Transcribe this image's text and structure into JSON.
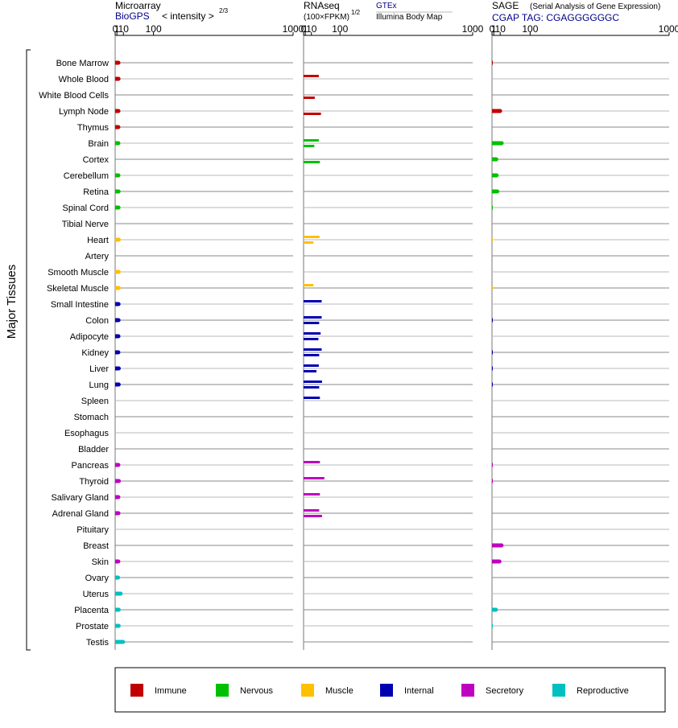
{
  "headers": {
    "microarray_title": "Microarray",
    "microarray_source": "BioGPS",
    "microarray_scale": "< intensity >",
    "microarray_scale_exp": "2/3",
    "rnaseq_title": "RNAseq",
    "rnaseq_scale": "(100×FPKM)",
    "rnaseq_scale_exp": "1/2",
    "rnaseq_source1": "GTEx",
    "rnaseq_source2": "Illumina Body Map",
    "sage_title": "SAGE",
    "sage_subtitle": "(Serial Analysis of Gene Expression)",
    "sage_tag": "CGAP TAG: CGAGGGGGGC"
  },
  "group_label": "Major Tissues",
  "legend": [
    {
      "label": "Immune",
      "color": "#c00000"
    },
    {
      "label": "Nervous",
      "color": "#00c000"
    },
    {
      "label": "Muscle",
      "color": "#ffc000"
    },
    {
      "label": "Internal",
      "color": "#0000b0"
    },
    {
      "label": "Secretory",
      "color": "#c000c0"
    },
    {
      "label": "Reproductive",
      "color": "#00c0c0"
    }
  ],
  "chart_data": {
    "type": "bar",
    "orientation": "horizontal",
    "scale": "power (intensity^(2/3))",
    "axis_ticks": [
      "0",
      "1",
      "10",
      "100",
      "1000"
    ],
    "panels": [
      "Microarray",
      "RNAseq (GTEx)",
      "RNAseq (Illumina Body Map)",
      "SAGE"
    ],
    "categories": [
      "Bone Marrow",
      "Whole Blood",
      "White Blood Cells",
      "Lymph Node",
      "Thymus",
      "Brain",
      "Cortex",
      "Cerebellum",
      "Retina",
      "Spinal Cord",
      "Tibial Nerve",
      "Heart",
      "Artery",
      "Smooth Muscle",
      "Skeletal Muscle",
      "Small Intestine",
      "Colon",
      "Adipocyte",
      "Kidney",
      "Liver",
      "Lung",
      "Spleen",
      "Stomach",
      "Esophagus",
      "Bladder",
      "Pancreas",
      "Thyroid",
      "Salivary Gland",
      "Adrenal Gland",
      "Pituitary",
      "Breast",
      "Skin",
      "Ovary",
      "Uterus",
      "Placenta",
      "Prostate",
      "Testis"
    ],
    "groups": [
      "immune",
      "immune",
      "immune",
      "immune",
      "immune",
      "nervous",
      "nervous",
      "nervous",
      "nervous",
      "nervous",
      "nervous",
      "muscle",
      "muscle",
      "muscle",
      "muscle",
      "internal",
      "internal",
      "internal",
      "internal",
      "internal",
      "internal",
      "internal",
      "internal",
      "internal",
      "internal",
      "secretory",
      "secretory",
      "secretory",
      "secretory",
      "secretory",
      "secretory",
      "secretory",
      "reproductive",
      "reproductive",
      "reproductive",
      "reproductive",
      "reproductive"
    ],
    "series": [
      {
        "name": "Microarray",
        "values": [
          2.5,
          2.6,
          null,
          2.5,
          2.4,
          2.4,
          null,
          2.4,
          2.7,
          2.6,
          null,
          2.9,
          null,
          2.8,
          2.8,
          2.6,
          2.6,
          2.5,
          2.4,
          2.9,
          2.8,
          null,
          null,
          null,
          null,
          2.4,
          3.0,
          2.4,
          2.5,
          null,
          null,
          2.4,
          2.1,
          5.4,
          2.8,
          2.8,
          9.2
        ]
      },
      {
        "name": "GTEx",
        "values": [
          null,
          27,
          null,
          null,
          null,
          27,
          null,
          null,
          null,
          null,
          null,
          29,
          null,
          null,
          14,
          35,
          35,
          32,
          35,
          27,
          36,
          30,
          null,
          null,
          null,
          30,
          43,
          30,
          28,
          null,
          null,
          null,
          null,
          null,
          null,
          null,
          null
        ]
      },
      {
        "name": "Illumina Body Map",
        "values": [
          null,
          null,
          17,
          33,
          null,
          16,
          30,
          null,
          null,
          null,
          null,
          14,
          null,
          null,
          null,
          null,
          28,
          26,
          28,
          21,
          28,
          null,
          null,
          null,
          null,
          null,
          null,
          null,
          36,
          null,
          null,
          null,
          null,
          null,
          null,
          null,
          null
        ]
      },
      {
        "name": "SAGE",
        "values": [
          0.15,
          null,
          null,
          9.8,
          null,
          12.8,
          3.7,
          4.2,
          5.1,
          0.15,
          null,
          0.1,
          null,
          null,
          0.1,
          null,
          0.15,
          null,
          0.15,
          0.15,
          0.15,
          null,
          null,
          null,
          null,
          0.15,
          0.15,
          null,
          null,
          null,
          12.5,
          8.6,
          null,
          null,
          3.3,
          0.1,
          null
        ]
      }
    ]
  }
}
